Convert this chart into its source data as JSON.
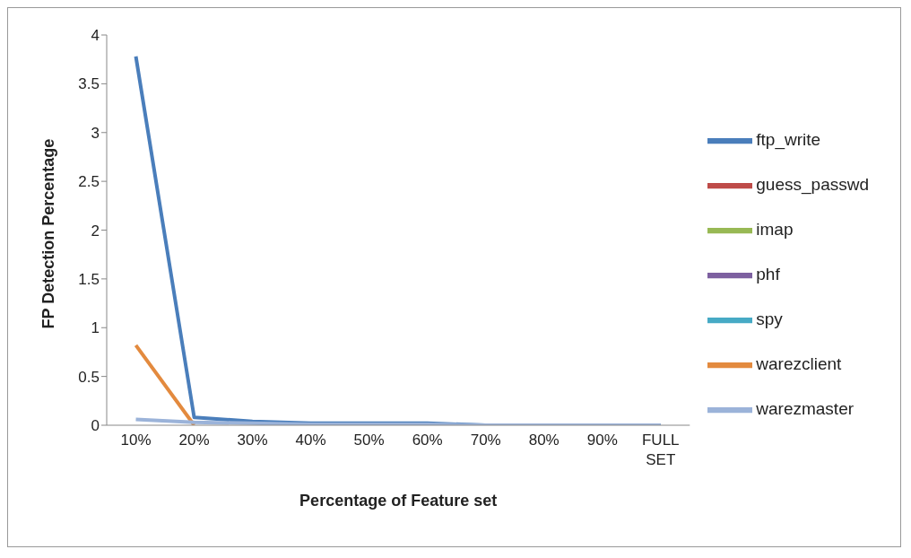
{
  "chart_data": {
    "type": "line",
    "xlabel": "Percentage of Feature set",
    "ylabel": "FP Detection Percentage",
    "categories": [
      "10%",
      "20%",
      "30%",
      "40%",
      "50%",
      "60%",
      "70%",
      "80%",
      "90%",
      "FULL SET"
    ],
    "series": [
      {
        "name": "ftp_write",
        "color": "#4a7ebb",
        "values": [
          3.78,
          0.08,
          0.04,
          0.02,
          0.02,
          0.02,
          0,
          0,
          0,
          0
        ]
      },
      {
        "name": "guess_passwd",
        "color": "#be4b48",
        "values": [
          null,
          null,
          null,
          null,
          null,
          null,
          null,
          null,
          null,
          null
        ]
      },
      {
        "name": "imap",
        "color": "#98b954",
        "values": [
          null,
          null,
          null,
          null,
          null,
          null,
          null,
          null,
          null,
          null
        ]
      },
      {
        "name": "phf",
        "color": "#7d60a0",
        "values": [
          null,
          null,
          null,
          null,
          null,
          null,
          null,
          null,
          null,
          null
        ]
      },
      {
        "name": "spy",
        "color": "#46aac5",
        "values": [
          null,
          null,
          null,
          null,
          null,
          null,
          null,
          null,
          null,
          null
        ]
      },
      {
        "name": "warezclient",
        "color": "#e38a3e",
        "values": [
          0.82,
          0,
          null,
          null,
          null,
          null,
          null,
          null,
          null,
          null
        ]
      },
      {
        "name": "warezmaster",
        "color": "#9bb3d9",
        "values": [
          0.06,
          0.03,
          0.02,
          0.01,
          0.01,
          0.01,
          0,
          0,
          0,
          0
        ]
      }
    ],
    "ylim": [
      0,
      4
    ],
    "yticks": [
      0,
      0.5,
      1,
      1.5,
      2,
      2.5,
      3,
      3.5,
      4
    ],
    "grid": false,
    "legend": "right",
    "marker": "none",
    "line_style": "solid"
  }
}
